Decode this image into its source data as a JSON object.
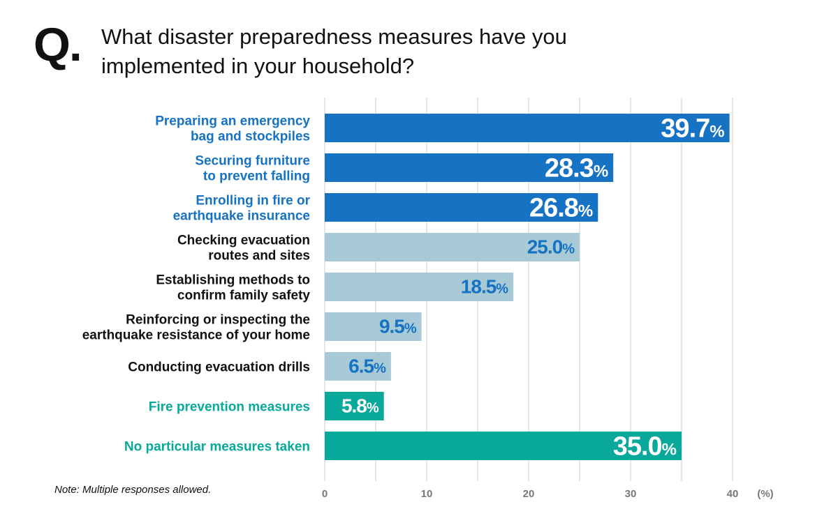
{
  "question_mark": "Q.",
  "title_lines": [
    "What disaster preparedness measures have you",
    "implemented in your household?"
  ],
  "note": "Note: Multiple responses allowed.",
  "colors": {
    "dark_blue": "#1672c2",
    "light_blue": "#a8cad6",
    "teal": "#08a89a",
    "label_blue": "#1672c2",
    "label_dark": "#111111",
    "label_teal": "#08a89a",
    "grid": "#e6e6e6",
    "white": "#ffffff",
    "axis_text": "#777777"
  },
  "chart_data": {
    "type": "bar",
    "orientation": "horizontal",
    "title": "What disaster preparedness measures have you implemented in your household?",
    "xlabel": "(%)",
    "xlim": [
      0,
      40
    ],
    "xticks": [
      0,
      10,
      20,
      30,
      40
    ],
    "grid": true,
    "value_unit": "%",
    "categories": [
      "Preparing an emergency bag and stockpiles",
      "Securing furniture to prevent falling",
      "Enrolling in fire or earthquake insurance",
      "Checking evacuation routes and sites",
      "Establishing methods to confirm family safety",
      "Reinforcing or inspecting the earthquake resistance of your home",
      "Conducting evacuation drills",
      "Fire prevention measures",
      "No particular measures taken"
    ],
    "category_label_lines": [
      [
        "Preparing an emergency",
        "bag and stockpiles"
      ],
      [
        "Securing furniture",
        "to prevent falling"
      ],
      [
        "Enrolling in fire or",
        "earthquake insurance"
      ],
      [
        "Checking evacuation",
        "routes and sites"
      ],
      [
        "Establishing methods to",
        "confirm family safety"
      ],
      [
        "Reinforcing or inspecting the",
        "earthquake resistance of your home"
      ],
      [
        "Conducting evacuation drills"
      ],
      [
        "Fire prevention measures"
      ],
      [
        "No particular measures taken"
      ]
    ],
    "values": [
      39.7,
      28.3,
      26.8,
      25.0,
      18.5,
      9.5,
      6.5,
      5.8,
      35.0
    ],
    "value_labels": [
      "39.7",
      "28.3",
      "26.8",
      "25.0",
      "18.5",
      "9.5",
      "6.5",
      "5.8",
      "35.0"
    ],
    "groups": [
      "dark",
      "dark",
      "dark",
      "light",
      "light",
      "light",
      "light",
      "teal",
      "teal"
    ]
  }
}
